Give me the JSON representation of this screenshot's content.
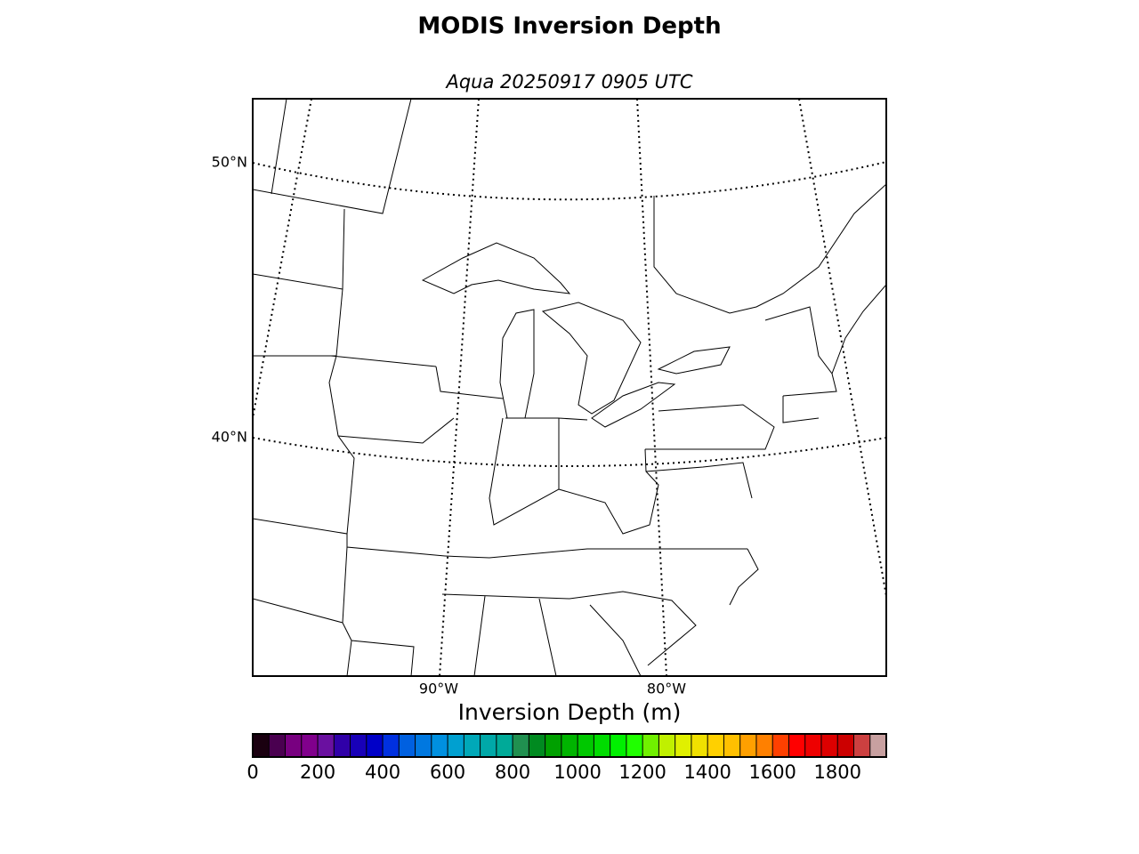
{
  "title": "MODIS Inversion Depth",
  "subtitle": "Aqua 20250917 0905 UTC",
  "map": {
    "lat_labels": [
      "50°N",
      "40°N"
    ],
    "lon_labels": [
      "90°W",
      "80°W"
    ]
  },
  "colorbar": {
    "label": "Inversion Depth (m)",
    "range": [
      0,
      1950
    ],
    "ticks": [
      0,
      200,
      400,
      600,
      800,
      1000,
      1200,
      1400,
      1600,
      1800
    ],
    "colors": [
      "#1a0010",
      "#4a0050",
      "#780080",
      "#80008c",
      "#6a10a0",
      "#3000a8",
      "#1800b8",
      "#0000c8",
      "#0030e0",
      "#0060e0",
      "#0078e0",
      "#0090e0",
      "#00a0d0",
      "#00a8b8",
      "#00a8a8",
      "#00aa98",
      "#209050",
      "#008a20",
      "#00a000",
      "#00b400",
      "#00c800",
      "#00dc00",
      "#00f000",
      "#20ff00",
      "#70f000",
      "#c0f000",
      "#e0f000",
      "#f0e000",
      "#ffd000",
      "#ffc000",
      "#ffa000",
      "#ff8000",
      "#ff4000",
      "#ff0000",
      "#ee0000",
      "#dd0000",
      "#cc0000",
      "#cc4040",
      "#c8a0a0"
    ]
  }
}
